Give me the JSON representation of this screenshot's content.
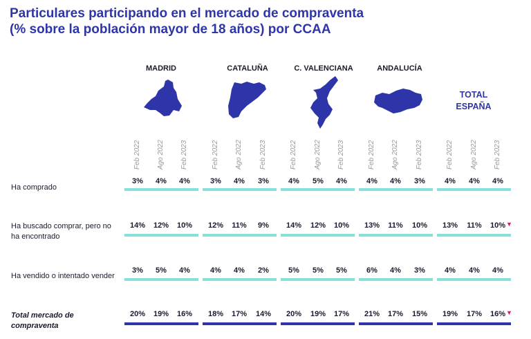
{
  "title_line1": "Particulares participando en el mercado de compraventa",
  "title_line2": "(% sobre la población mayor de 18 años) por CCAA",
  "colors": {
    "title": "#2d35a8",
    "map": "#2d35a8",
    "bar": "#86e0dc",
    "bar_total": "#2d35a8",
    "down_arrow": "#d81b60"
  },
  "chart_data": {
    "type": "table",
    "periods": [
      "Feb 2022",
      "Ago 2022",
      "Feb 2023"
    ],
    "regions": [
      "MADRID",
      "CATALUÑA",
      "C. VALENCIANA",
      "ANDALUCÍA",
      "TOTAL ESPAÑA"
    ],
    "total_label": {
      "line1": "TOTAL",
      "line2": "ESPAÑA"
    },
    "rows": [
      {
        "label_lines": [
          "Ha comprado"
        ],
        "total": false,
        "values": [
          [
            "3%",
            "4%",
            "4%"
          ],
          [
            "3%",
            "4%",
            "3%"
          ],
          [
            "4%",
            "5%",
            "4%"
          ],
          [
            "4%",
            "4%",
            "3%"
          ],
          [
            "4%",
            "4%",
            "4%"
          ]
        ]
      },
      {
        "label_lines": [
          "Ha buscado comprar, pero no",
          "ha encontrado"
        ],
        "total": false,
        "values": [
          [
            "14%",
            "12%",
            "10%"
          ],
          [
            "12%",
            "11%",
            "9%"
          ],
          [
            "14%",
            "12%",
            "10%"
          ],
          [
            "13%",
            "11%",
            "10%"
          ],
          [
            "13%",
            "11%",
            "10%"
          ]
        ]
      },
      {
        "label_lines": [
          "Ha vendido o intentado vender"
        ],
        "total": false,
        "values": [
          [
            "3%",
            "5%",
            "4%"
          ],
          [
            "4%",
            "4%",
            "2%"
          ],
          [
            "5%",
            "5%",
            "5%"
          ],
          [
            "6%",
            "4%",
            "3%"
          ],
          [
            "4%",
            "4%",
            "4%"
          ]
        ]
      },
      {
        "label_lines": [
          "Total mercado de",
          "compraventa"
        ],
        "total": true,
        "values": [
          [
            "20%",
            "19%",
            "16%"
          ],
          [
            "18%",
            "17%",
            "14%"
          ],
          [
            "20%",
            "19%",
            "17%"
          ],
          [
            "21%",
            "17%",
            "15%"
          ],
          [
            "19%",
            "17%",
            "16%"
          ]
        ]
      }
    ],
    "down_arrow_marks": [
      {
        "row": 1,
        "region": 4,
        "period": 2
      },
      {
        "row": 3,
        "region": 4,
        "period": 2
      }
    ]
  }
}
